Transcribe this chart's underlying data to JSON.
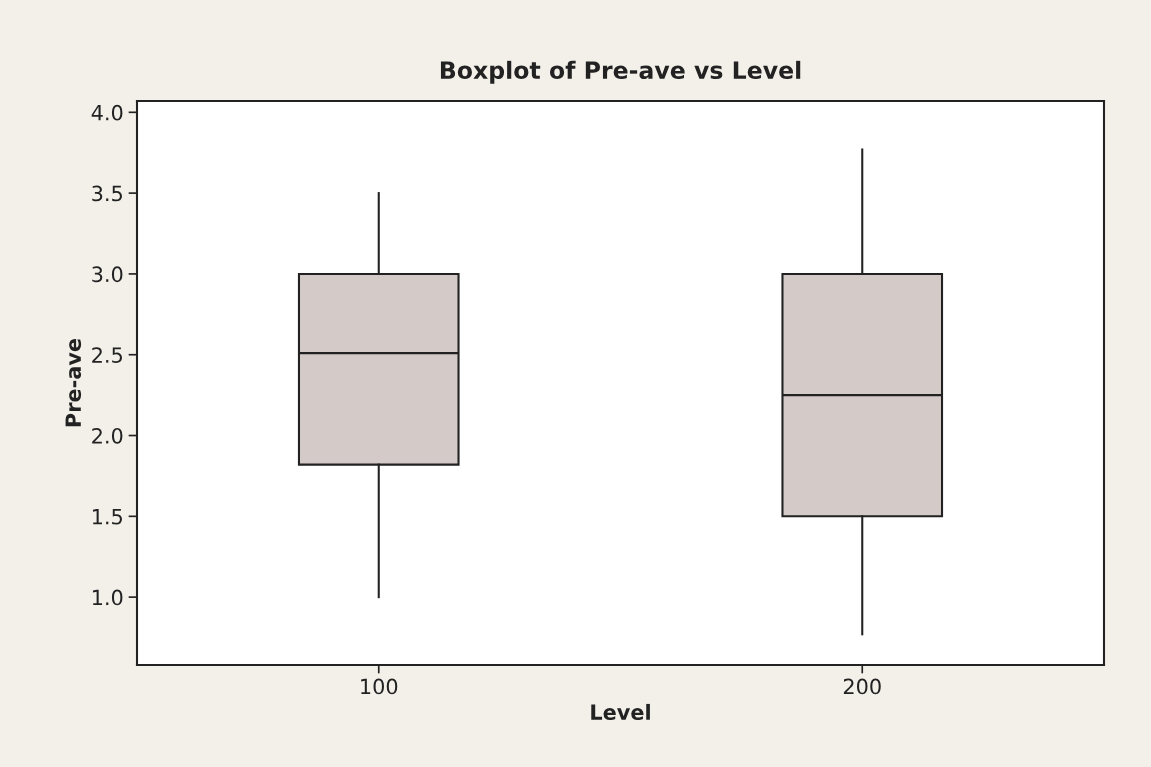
{
  "chart_data": {
    "type": "box",
    "title": "Boxplot of Pre-ave vs Level",
    "xlabel": "Level",
    "ylabel": "Pre-ave",
    "categories": [
      "100",
      "200"
    ],
    "boxes": [
      {
        "low": 1.0,
        "q1": 1.82,
        "median": 2.51,
        "q3": 3.0,
        "high": 3.5
      },
      {
        "low": 0.77,
        "q1": 1.5,
        "median": 2.25,
        "q3": 3.0,
        "high": 3.77
      }
    ],
    "color": "#d4cbc8",
    "ylim": [
      0.58,
      4.07
    ],
    "yticks": [
      {
        "value": 1.0,
        "label": "1.0"
      },
      {
        "value": 1.5,
        "label": "1.5"
      },
      {
        "value": 2.0,
        "label": "2.0"
      },
      {
        "value": 2.5,
        "label": "2.5"
      },
      {
        "value": 3.0,
        "label": "3.0"
      },
      {
        "value": 3.5,
        "label": "3.5"
      },
      {
        "value": 4.0,
        "label": "4.0"
      }
    ],
    "grid": false
  }
}
